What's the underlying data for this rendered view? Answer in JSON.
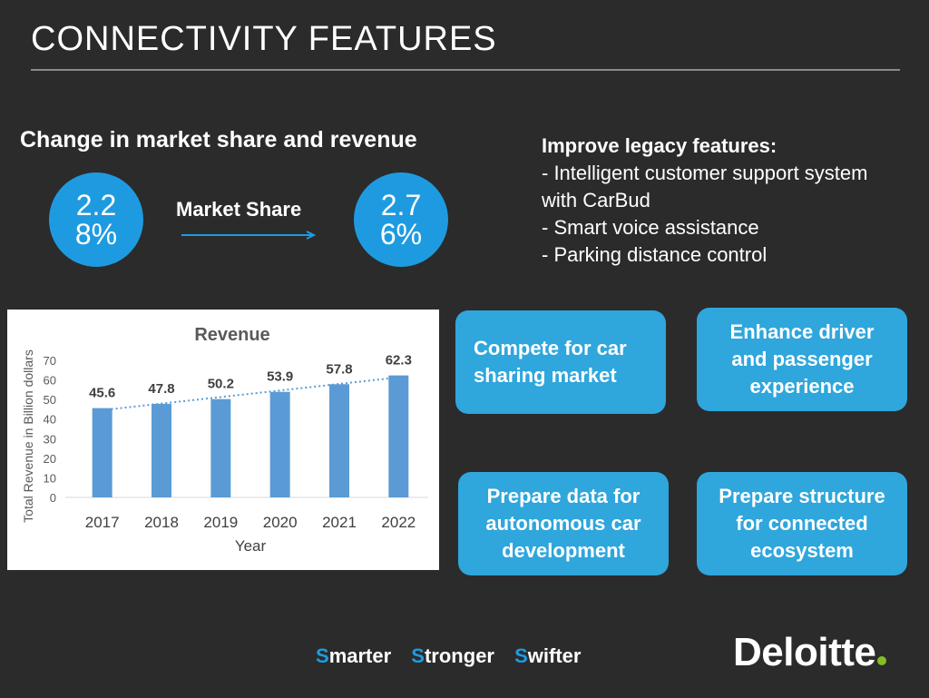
{
  "slide": {
    "title": "CONNECTIVITY FEATURES",
    "subheading": "Change in market share and revenue"
  },
  "market_share": {
    "label": "Market Share",
    "from_value": "2.28%",
    "to_value": "2.76%",
    "accent_color": "#1e9be0"
  },
  "legacy": {
    "heading": "Improve legacy features:",
    "items": [
      "- Intelligent customer support system with CarBud",
      "- Smart voice assistance",
      "- Parking distance control"
    ]
  },
  "cards": [
    {
      "label": "Compete for car sharing market"
    },
    {
      "label": "Enhance driver and passenger experience"
    },
    {
      "label": "Prepare data for autonomous car development"
    },
    {
      "label": "Prepare structure for connected ecosystem"
    }
  ],
  "chart_data": {
    "type": "bar",
    "title": "Revenue",
    "xlabel": "Year",
    "ylabel": "Total Revenue in Billion dollars",
    "categories": [
      "2017",
      "2018",
      "2019",
      "2020",
      "2021",
      "2022"
    ],
    "values": [
      45.6,
      47.8,
      50.2,
      53.9,
      57.8,
      62.3
    ],
    "ylim": [
      0,
      70
    ],
    "yticks": [
      0,
      10,
      20,
      30,
      40,
      50,
      60,
      70
    ],
    "data_labels": true,
    "trendline": "dotted linear",
    "bar_color": "#5b9bd5",
    "legend": "none",
    "grid": false
  },
  "tagline": {
    "words": [
      {
        "initial": "S",
        "rest": "marter"
      },
      {
        "initial": "S",
        "rest": "tronger"
      },
      {
        "initial": "S",
        "rest": "wifter"
      }
    ]
  },
  "logo": {
    "text": "Deloitte",
    "dot_color": "#86bc25"
  }
}
